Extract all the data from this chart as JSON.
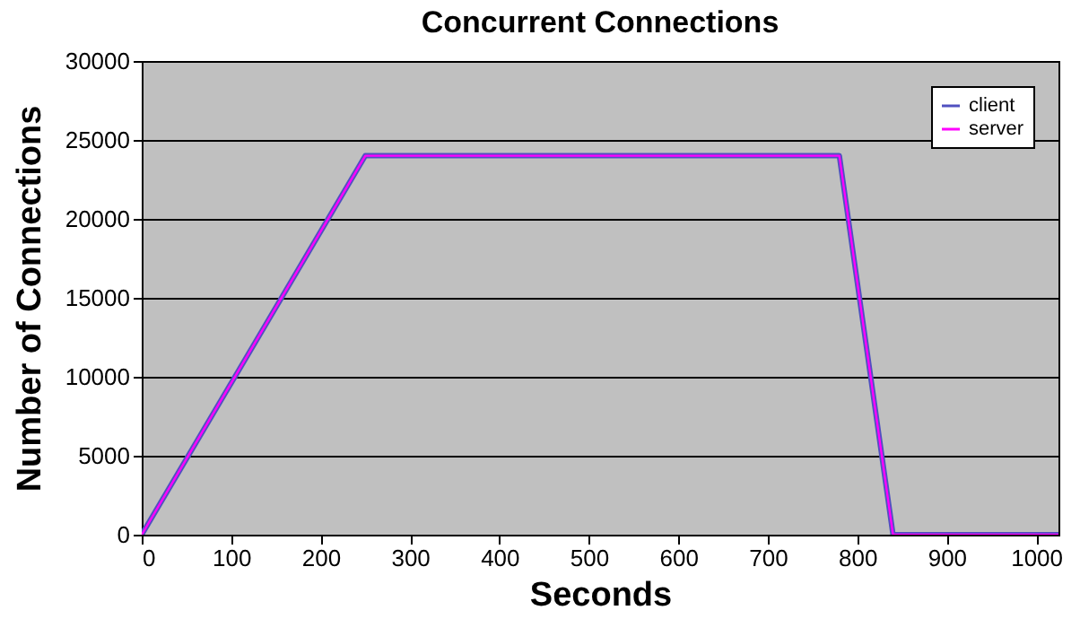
{
  "chart_data": {
    "type": "line",
    "title": "Concurrent Connections",
    "xlabel": "Seconds",
    "ylabel": "Number of Connections",
    "x": [
      0,
      250,
      780,
      840,
      1025
    ],
    "series": [
      {
        "name": "client",
        "color": "#5050c0",
        "values": [
          0,
          24000,
          24000,
          0,
          0
        ]
      },
      {
        "name": "server",
        "color": "#ff00ff",
        "values": [
          0,
          24000,
          24000,
          0,
          0
        ]
      }
    ],
    "xlim": [
      0,
      1025
    ],
    "xticks": [
      0,
      100,
      200,
      300,
      400,
      500,
      600,
      700,
      800,
      900,
      1000
    ],
    "ylim": [
      0,
      30000
    ],
    "yticks": [
      0,
      5000,
      10000,
      15000,
      20000,
      25000,
      30000
    ],
    "grid": "y",
    "legend": "top right",
    "marker": "none",
    "line_style": "solid"
  }
}
